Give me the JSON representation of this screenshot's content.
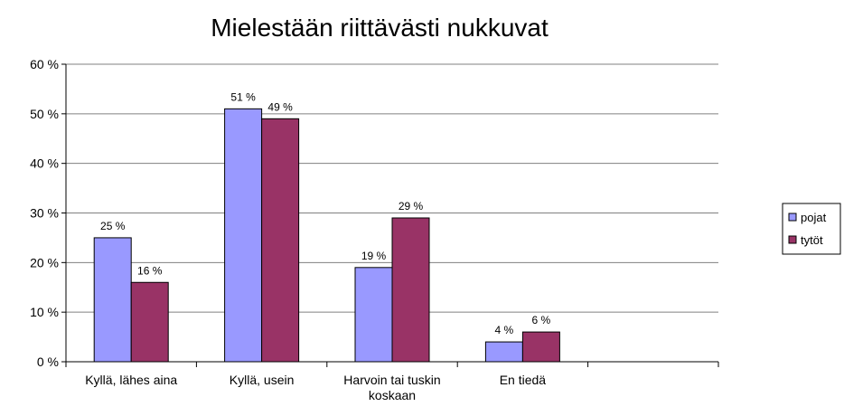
{
  "chart_data": {
    "type": "bar",
    "title": "Mielestään riittävästi nukkuvat",
    "xlabel": "",
    "ylabel": "",
    "ylim": [
      0,
      60
    ],
    "yticks": [
      0,
      10,
      20,
      30,
      40,
      50,
      60
    ],
    "ytick_labels": [
      "0 %",
      "10 %",
      "20 %",
      "30 %",
      "40 %",
      "50 %",
      "60 %"
    ],
    "categories": [
      [
        "Kyllä, lähes aina"
      ],
      [
        "Kyllä, usein"
      ],
      [
        "Harvoin tai tuskin",
        "koskaan"
      ],
      [
        "En tiedä"
      ],
      [
        ""
      ]
    ],
    "series": [
      {
        "name": "pojat",
        "color": "#9999ff",
        "values": [
          25,
          51,
          19,
          4,
          null
        ],
        "labels": [
          "25 %",
          "51 %",
          "19 %",
          "4 %",
          ""
        ]
      },
      {
        "name": "tytöt",
        "color": "#993366",
        "values": [
          16,
          49,
          29,
          6,
          null
        ],
        "labels": [
          "16 %",
          "49 %",
          "29 %",
          "6 %",
          ""
        ]
      }
    ],
    "grid": true,
    "legend_position": "right"
  }
}
